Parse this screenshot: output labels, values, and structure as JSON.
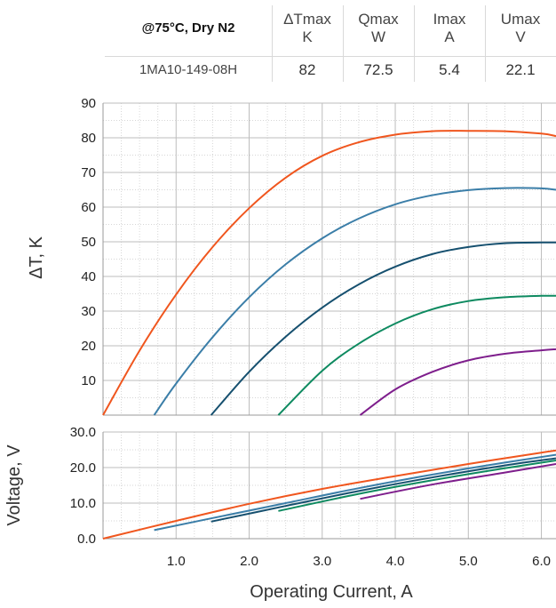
{
  "table": {
    "condition": "@75°C, Dry N2",
    "columns": [
      {
        "name": "ΔTmax",
        "unit": "K"
      },
      {
        "name": "Qmax",
        "unit": "W"
      },
      {
        "name": "Imax",
        "unit": "A"
      },
      {
        "name": "Umax",
        "unit": "V"
      }
    ],
    "row": {
      "model": "1MA10-149-08H",
      "values": [
        "82",
        "72.5",
        "5.4",
        "22.1"
      ]
    }
  },
  "chart_data": [
    {
      "type": "line",
      "title": "",
      "xlabel": "",
      "ylabel": "ΔT, K",
      "xlim": [
        0,
        6.2
      ],
      "ylim": [
        0,
        90
      ],
      "yticks": [
        "10",
        "20",
        "30",
        "40",
        "50",
        "60",
        "70",
        "80",
        "90"
      ],
      "grid": true,
      "series": [
        {
          "color": "#f0561e",
          "x": [
            0,
            0.5,
            1.0,
            1.5,
            2.0,
            2.5,
            3.0,
            3.5,
            4.0,
            4.5,
            5.0,
            5.5,
            6.0,
            6.2
          ],
          "y": [
            0,
            18.6,
            34.8,
            48.5,
            59.7,
            68.5,
            74.8,
            78.7,
            80.9,
            81.9,
            82.0,
            81.9,
            81.2,
            80.5
          ]
        },
        {
          "color": "#3b7ea8",
          "x": [
            0.7,
            1.0,
            1.5,
            2.0,
            2.5,
            3.0,
            3.5,
            4.0,
            4.5,
            5.0,
            5.5,
            6.0,
            6.2
          ],
          "y": [
            0,
            9.1,
            22.5,
            34.0,
            43.5,
            51.0,
            56.7,
            60.8,
            63.4,
            64.9,
            65.5,
            65.4,
            65.0
          ]
        },
        {
          "color": "#16506f",
          "x": [
            1.48,
            2.0,
            2.5,
            3.0,
            3.5,
            4.0,
            4.5,
            5.0,
            5.5,
            6.0,
            6.2
          ],
          "y": [
            0,
            12.5,
            22.6,
            31.0,
            37.7,
            42.8,
            46.4,
            48.5,
            49.6,
            49.8,
            49.8
          ]
        },
        {
          "color": "#0e8a60",
          "x": [
            2.4,
            3.0,
            3.5,
            4.0,
            4.5,
            5.0,
            5.5,
            6.0,
            6.2
          ],
          "y": [
            0,
            12.8,
            20.6,
            26.4,
            30.5,
            32.9,
            34.0,
            34.4,
            34.4
          ]
        },
        {
          "color": "#7e1e8c",
          "x": [
            3.52,
            4.0,
            4.5,
            5.0,
            5.5,
            6.0,
            6.2
          ],
          "y": [
            0,
            7.4,
            12.4,
            15.8,
            17.7,
            18.7,
            19.0
          ]
        }
      ]
    },
    {
      "type": "line",
      "title": "",
      "xlabel": "Operating Current, A",
      "ylabel": "Voltage, V",
      "xlim": [
        0,
        6.2
      ],
      "ylim": [
        0,
        30
      ],
      "xticks": [
        "1.0",
        "2.0",
        "3.0",
        "4.0",
        "5.0",
        "6.0"
      ],
      "yticks": [
        "0.0",
        "10.0",
        "20.0",
        "30.0"
      ],
      "grid": true,
      "series": [
        {
          "color": "#f0561e",
          "x": [
            0,
            1,
            2,
            3,
            4,
            5,
            6,
            6.2
          ],
          "y": [
            0,
            5.0,
            9.8,
            14.0,
            17.6,
            21.0,
            24.2,
            24.8
          ]
        },
        {
          "color": "#3b7ea8",
          "x": [
            0.7,
            1.5,
            2.5,
            3.5,
            4.5,
            5.5,
            6.2
          ],
          "y": [
            2.4,
            5.8,
            10.0,
            14.2,
            18.0,
            21.4,
            23.6
          ]
        },
        {
          "color": "#16506f",
          "x": [
            1.48,
            2.5,
            3.5,
            4.5,
            5.5,
            6.2
          ],
          "y": [
            4.8,
            9.2,
            13.4,
            17.2,
            20.6,
            22.6
          ]
        },
        {
          "color": "#0e8a60",
          "x": [
            2.4,
            3.5,
            4.5,
            5.5,
            6.2
          ],
          "y": [
            7.8,
            12.6,
            16.4,
            19.8,
            22.0
          ]
        },
        {
          "color": "#7e1e8c",
          "x": [
            3.52,
            4.5,
            5.5,
            6.2
          ],
          "y": [
            11.2,
            15.2,
            18.6,
            21.0
          ]
        }
      ]
    }
  ]
}
